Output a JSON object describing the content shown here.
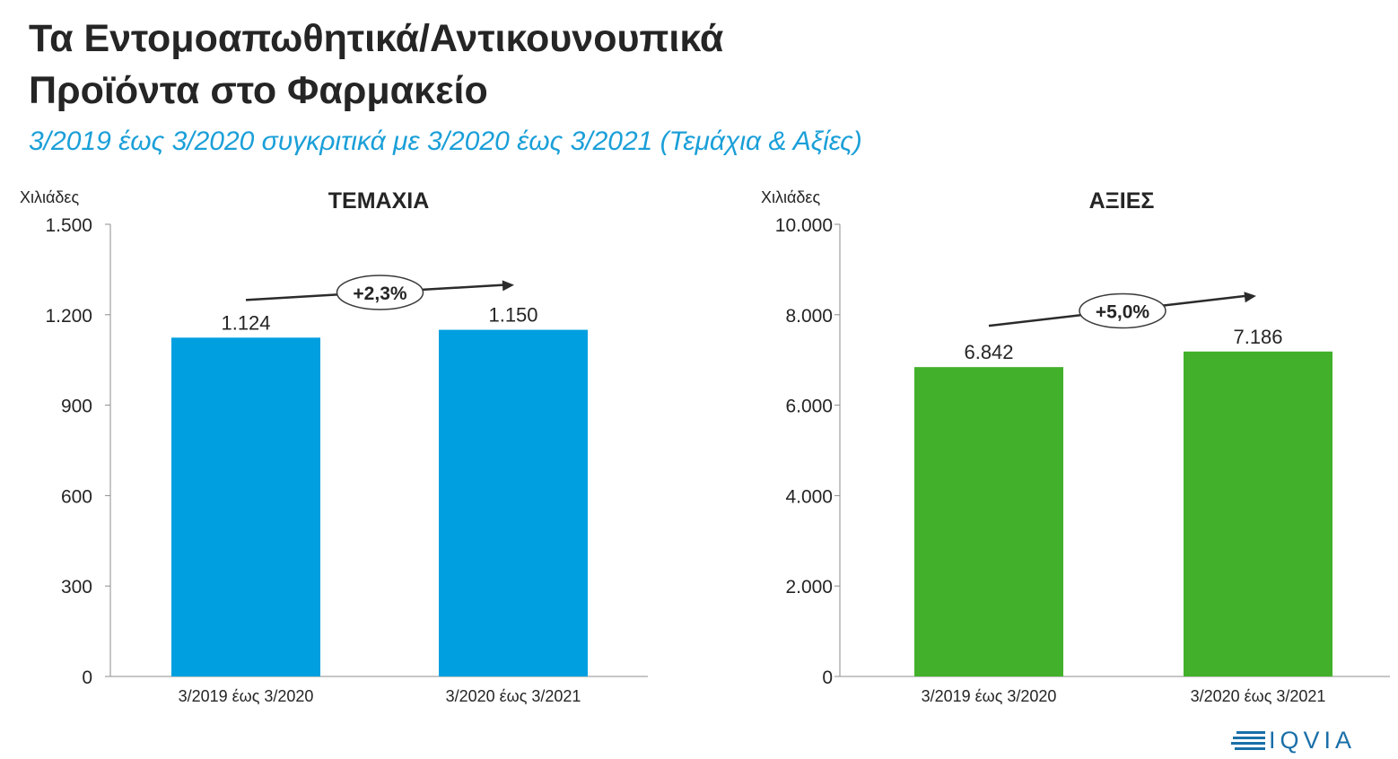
{
  "header": {
    "title_line1": "Τα Εντομοαπωθητικά/Αντικουνουπικά",
    "title_line2": "Προϊόντα στο Φαρμακείο",
    "subtitle": "3/2019 έως 3/2020 συγκριτικά με 3/2020 έως 3/2021 (Τεμάχια & Αξίες)"
  },
  "chart_data": [
    {
      "type": "bar",
      "title": "ΤΕΜΑΧΙΑ",
      "ylabel": "Χιλιάδες",
      "categories": [
        "3/2019 έως 3/2020",
        "3/2020 έως 3/2021"
      ],
      "values": [
        1124,
        1150
      ],
      "value_labels": [
        "1.124",
        "1.150"
      ],
      "ylim": [
        0,
        1500
      ],
      "yticks": [
        0,
        300,
        600,
        900,
        1200,
        1500
      ],
      "ytick_labels": [
        "0",
        "300",
        "600",
        "900",
        "1.200",
        "1.500"
      ],
      "color": "#009fe0",
      "growth_label": "+2,3%",
      "grid": false
    },
    {
      "type": "bar",
      "title": "ΑΞΙΕΣ",
      "ylabel": "Χιλιάδες",
      "categories": [
        "3/2019 έως 3/2020",
        "3/2020 έως 3/2021"
      ],
      "values": [
        6842,
        7186
      ],
      "value_labels": [
        "6.842",
        "7.186"
      ],
      "ylim": [
        0,
        10000
      ],
      "yticks": [
        0,
        2000,
        4000,
        6000,
        8000,
        10000
      ],
      "ytick_labels": [
        "0",
        "2.000",
        "4.000",
        "6.000",
        "8.000",
        "10.000"
      ],
      "color": "#42b02a",
      "growth_label": "+5,0%",
      "grid": false
    }
  ],
  "logo": {
    "text": "IQVIA",
    "color": "#1a6fa8"
  }
}
